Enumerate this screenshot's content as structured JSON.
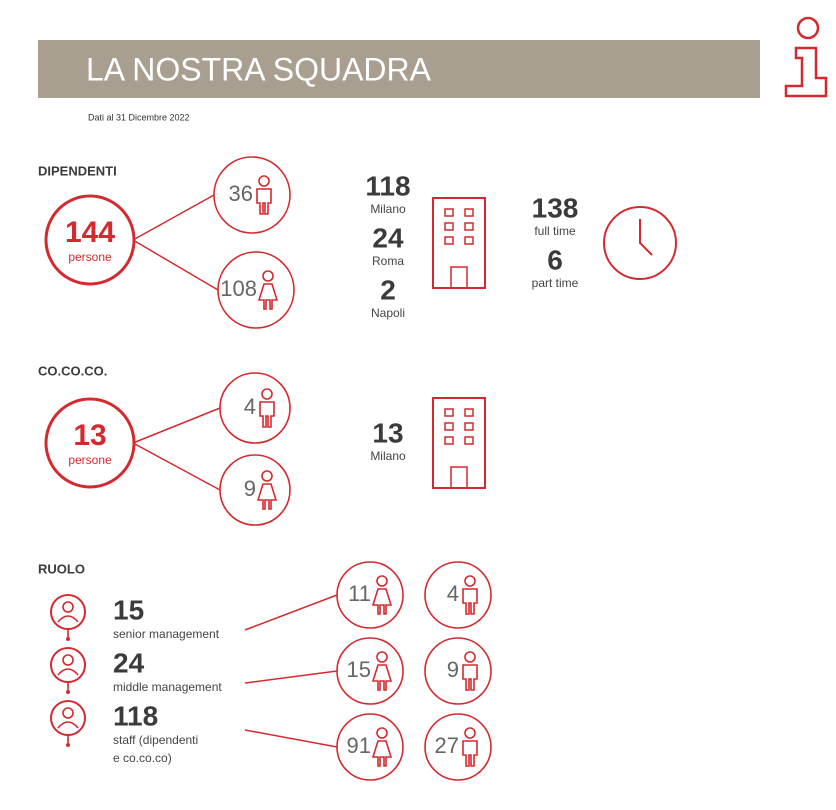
{
  "header": {
    "title": "LA NOSTRA SQUADRA",
    "date": "Dati al 31 Dicembre 2022"
  },
  "dipendenti": {
    "label": "DIPENDENTI",
    "total": 144,
    "unit": "persone",
    "men": 36,
    "women": 108,
    "sites": [
      {
        "value": 118,
        "name": "Milano"
      },
      {
        "value": 24,
        "name": "Roma"
      },
      {
        "value": 2,
        "name": "Napoli"
      }
    ],
    "hours": [
      {
        "value": 138,
        "name": "full time"
      },
      {
        "value": 6,
        "name": "part time"
      }
    ]
  },
  "cococo": {
    "label": "CO.CO.CO.",
    "total": 13,
    "unit": "persone",
    "men": 4,
    "women": 9,
    "sites": [
      {
        "value": 13,
        "name": "Milano"
      }
    ]
  },
  "ruolo": {
    "label": "RUOLO",
    "roles": [
      {
        "value": 15,
        "label": [
          "senior management"
        ],
        "women": 11,
        "men": 4
      },
      {
        "value": 24,
        "label": [
          "middle management"
        ],
        "women": 15,
        "men": 9
      },
      {
        "value": 118,
        "label": [
          "staff (dipendenti",
          "e co.co.co)"
        ],
        "women": 91,
        "men": 27
      }
    ]
  }
}
